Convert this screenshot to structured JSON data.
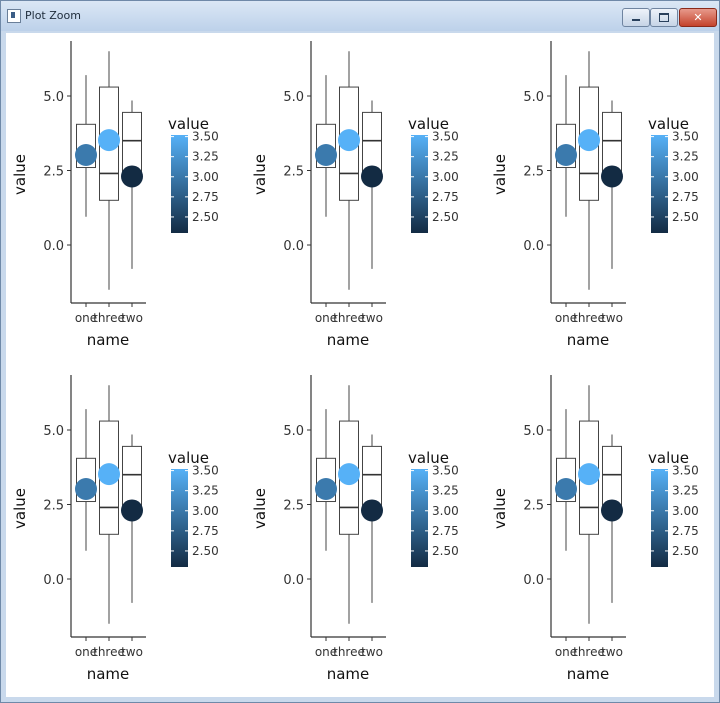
{
  "window": {
    "title": "Plot Zoom",
    "icons": [
      "app-icon",
      "minimize-icon",
      "maximize-icon",
      "close-icon"
    ],
    "close_glyph": "✕"
  },
  "chart_data": {
    "type": "boxplot",
    "layout": {
      "rows": 2,
      "cols": 3
    },
    "panels": 6,
    "xlabel": "name",
    "ylabel": "value",
    "categories": [
      "one",
      "three",
      "two"
    ],
    "yticks": [
      0.0,
      2.5,
      5.0
    ],
    "ytick_labels": [
      "0.0",
      "2.5",
      "5.0"
    ],
    "ylim": [
      -1.7,
      6.7
    ],
    "grid": false,
    "boxes": [
      {
        "name": "one",
        "min": 0.95,
        "q1": 2.6,
        "median": 3.0,
        "q3": 4.05,
        "max": 5.7
      },
      {
        "name": "three",
        "min": -1.5,
        "q1": 1.5,
        "median": 2.4,
        "q3": 5.3,
        "max": 6.5
      },
      {
        "name": "two",
        "min": -0.8,
        "q1": 2.4,
        "median": 3.5,
        "q3": 4.45,
        "max": 4.85
      }
    ],
    "points": [
      {
        "name": "one",
        "value": 3.02
      },
      {
        "name": "three",
        "value": 3.52
      },
      {
        "name": "two",
        "value": 2.3
      }
    ],
    "legend": {
      "title": "value",
      "placement": "right",
      "range": [
        2.3,
        3.52
      ],
      "breaks": [
        2.5,
        2.75,
        3.0,
        3.25,
        3.5
      ],
      "break_labels": [
        "2.50",
        "2.75",
        "3.00",
        "3.25",
        "3.50"
      ],
      "colors": {
        "low": "#132b43",
        "high": "#56b1f7"
      }
    }
  }
}
